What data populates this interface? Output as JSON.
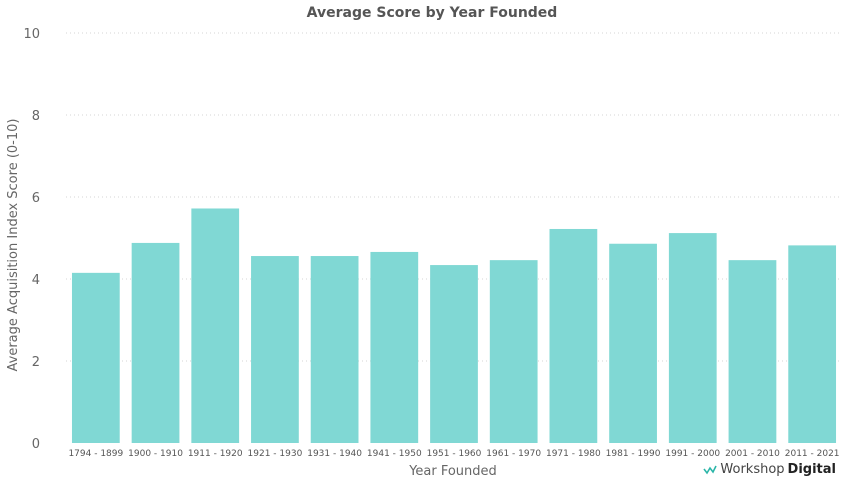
{
  "chart_data": {
    "type": "bar",
    "title": "Average Score by Year Founded",
    "xlabel": "Year Founded",
    "ylabel": "Average Acquisition Index Score (0-10)",
    "ylim": [
      0,
      10
    ],
    "yticks": [
      0,
      2,
      4,
      6,
      8,
      10
    ],
    "grid": true,
    "bar_color": "#80D8D4",
    "categories": [
      "1794 - 1899",
      "1900 - 1910",
      "1911 - 1920",
      "1921 - 1930",
      "1931 - 1940",
      "1941 - 1950",
      "1951 - 1960",
      "1961 - 1970",
      "1971 - 1980",
      "1981 - 1990",
      "1991 - 2000",
      "2001 - 2010",
      "2011 - 2021"
    ],
    "values": [
      4.15,
      4.88,
      5.72,
      4.56,
      4.56,
      4.66,
      4.34,
      4.46,
      5.22,
      4.86,
      5.12,
      4.46,
      4.82
    ]
  },
  "logo": {
    "part1": "Workshop",
    "part2": "Digital",
    "accent": "#2BB5A8"
  }
}
